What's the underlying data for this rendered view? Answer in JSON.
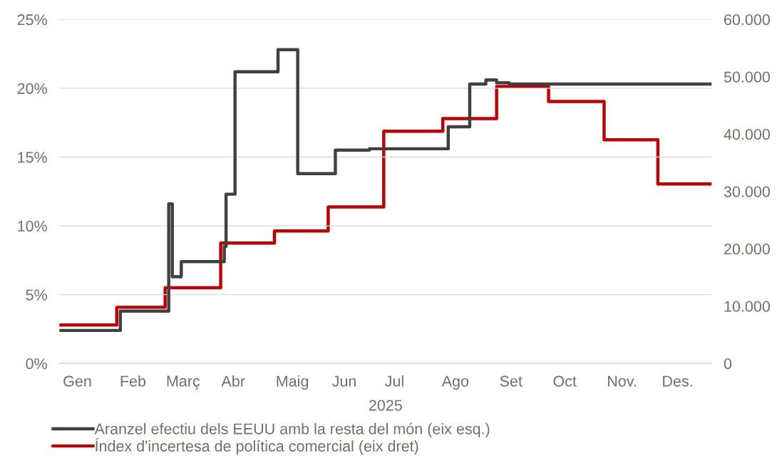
{
  "chart_data": {
    "type": "step",
    "xlabel": "2025",
    "xlim": [
      "2025-01-01",
      "2025-12-31"
    ],
    "xticks": [
      {
        "value": "2025-01-11",
        "label": "Gen"
      },
      {
        "value": "2025-02-11",
        "label": "Feb"
      },
      {
        "value": "2025-03-11",
        "label": "Març"
      },
      {
        "value": "2025-04-08",
        "label": "Abr"
      },
      {
        "value": "2025-05-11",
        "label": "Maig"
      },
      {
        "value": "2025-06-09",
        "label": "Jun"
      },
      {
        "value": "2025-07-07",
        "label": "Jul"
      },
      {
        "value": "2025-08-10",
        "label": "Ago"
      },
      {
        "value": "2025-09-10",
        "label": "Set"
      },
      {
        "value": "2025-10-10",
        "label": "Oct"
      },
      {
        "value": "2025-11-11",
        "label": "Nov."
      },
      {
        "value": "2025-12-12",
        "label": "Des."
      }
    ],
    "ylim": [
      0,
      25
    ],
    "yticks": [
      {
        "value": 0,
        "label": "0%"
      },
      {
        "value": 5,
        "label": "5%"
      },
      {
        "value": 10,
        "label": "10%"
      },
      {
        "value": 15,
        "label": "15%"
      },
      {
        "value": 20,
        "label": "20%"
      },
      {
        "value": 25,
        "label": "25%"
      }
    ],
    "y2lim": [
      0,
      60000
    ],
    "y2ticks": [
      {
        "value": 0,
        "label": "0"
      },
      {
        "value": 10000,
        "label": "10.000"
      },
      {
        "value": 20000,
        "label": "20.000"
      },
      {
        "value": 30000,
        "label": "30.000"
      },
      {
        "value": 40000,
        "label": "40.000"
      },
      {
        "value": 50000,
        "label": "50.000"
      },
      {
        "value": 60000,
        "label": "60.000"
      }
    ],
    "grid": "y",
    "legend": "bottom",
    "line_style": "solid",
    "marker": "none",
    "series": [
      {
        "name": "Aranzel efectiu dels EEUU amb la resta del món (eix esq.)",
        "color": "#404040",
        "x": [
          "2025-01-01",
          "2025-02-04",
          "2025-03-03",
          "2025-03-05",
          "2025-03-10",
          "2025-04-03",
          "2025-04-04",
          "2025-04-09",
          "2025-05-03",
          "2025-05-14",
          "2025-06-04",
          "2025-06-23",
          "2025-08-06",
          "2025-08-18",
          "2025-08-27",
          "2025-09-02",
          "2025-09-09",
          "2025-12-31"
        ],
        "values": [
          2.4,
          3.8,
          11.6,
          6.3,
          7.4,
          8.5,
          12.3,
          21.2,
          22.8,
          13.8,
          15.5,
          15.6,
          17.2,
          20.3,
          20.6,
          20.4,
          20.3,
          20.3
        ]
      },
      {
        "name": "Índex d'incertesa de política comercial (eix dret)",
        "color": "#c00000",
        "axis": "y2",
        "x": [
          "2025-01-01",
          "2025-02-02",
          "2025-03-01",
          "2025-04-01",
          "2025-05-01",
          "2025-05-31",
          "2025-07-01",
          "2025-08-03",
          "2025-09-02",
          "2025-10-01",
          "2025-11-01",
          "2025-12-01",
          "2025-12-31"
        ],
        "values": [
          6700,
          9800,
          13200,
          21000,
          23100,
          27300,
          40500,
          42700,
          48300,
          45700,
          39000,
          31300,
          31300
        ]
      }
    ]
  }
}
